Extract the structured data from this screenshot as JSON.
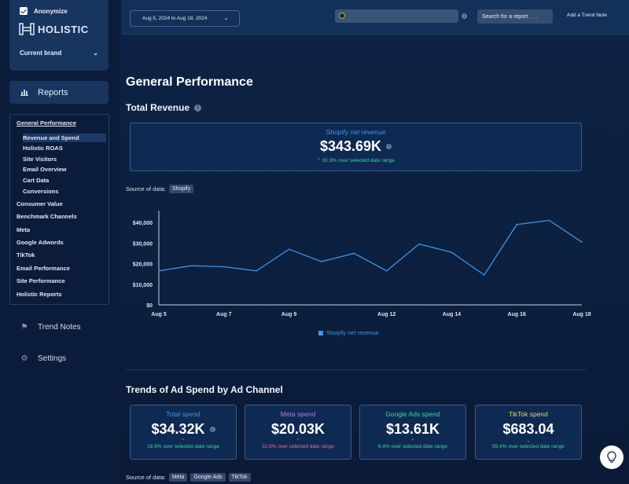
{
  "sidebar": {
    "anonymize_label": "Anonymize",
    "logo_text": "HOLISTIC",
    "current_brand_label": "Current brand",
    "reports_label": "Reports",
    "menu": {
      "general_performance": "General Performance",
      "sub_items": [
        "Revenue and Spend",
        "Holistic ROAS",
        "Site Visitors",
        "Email Overview",
        "Cart Data",
        "Conversions"
      ],
      "items": [
        "Consumer Value",
        "Benchmark Channels",
        "Meta",
        "Google Adwords",
        "TikTok",
        "Email Performance",
        "Site Performance",
        "Holistic Reports"
      ]
    },
    "trend_notes_label": "Trend Notes",
    "settings_label": "Settings"
  },
  "header": {
    "date_range": "Aug 5, 2024 to Aug 18, 2024",
    "search_label": "Search for a report . . .",
    "add_trend_note": "Add a Trend Note"
  },
  "main": {
    "page_title": "General Performance",
    "total_revenue_title": "Total Revenue",
    "revenue_kpi": {
      "label": "Shopify net revenue",
      "value": "$343.69K",
      "delta": "81.9% over selected date range",
      "label_color": "#3d95e6"
    },
    "source_label": "Source of data:",
    "revenue_source": "Shopify",
    "ad_spend_title": "Trends of Ad Spend by Ad Channel",
    "spend_kpis": [
      {
        "label": "Total spend",
        "value": "$34.32K",
        "delta": "18.9% over selected date range",
        "label_color": "#3d95e6",
        "delta_color": "#3cd6a5"
      },
      {
        "label": "Meta spend",
        "value": "$20.03K",
        "delta": "32.8% over selected date range",
        "label_color": "#b57ae8",
        "delta_color": "#f06a94"
      },
      {
        "label": "Google Ads spend",
        "value": "$13.61K",
        "delta": "6.4% over selected date range",
        "label_color": "#3cd6a5",
        "delta_color": "#3cd6a5"
      },
      {
        "label": "TikTok spend",
        "value": "$683.04",
        "delta": "59.4% over selected date range",
        "label_color": "#e8d26a",
        "delta_color": "#3cd6a5"
      }
    ],
    "spend_sources": [
      "Meta",
      "Google Ads",
      "TikTok"
    ]
  },
  "chart_data": {
    "type": "line",
    "x": [
      "Aug 5",
      "Aug 6",
      "Aug 7",
      "Aug 8",
      "Aug 9",
      "Aug 10",
      "Aug 11",
      "Aug 12",
      "Aug 13",
      "Aug 14",
      "Aug 15",
      "Aug 16",
      "Aug 17",
      "Aug 18"
    ],
    "x_tick_labels": [
      "Aug 5",
      "Aug 7",
      "Aug 9",
      "Aug 12",
      "Aug 14",
      "Aug 16",
      "Aug 18"
    ],
    "series": [
      {
        "name": "Shopify net revenue",
        "color": "#3d95e6",
        "values": [
          16500,
          19000,
          18500,
          16500,
          27000,
          21000,
          25000,
          16500,
          29500,
          25500,
          14500,
          39000,
          41000,
          30500
        ]
      }
    ],
    "y_ticks": [
      "$0",
      "$10,000",
      "$20,000",
      "$30,000",
      "$40,000"
    ],
    "ylim": [
      0,
      45000
    ],
    "grid": false,
    "legend": "bottom-center"
  }
}
